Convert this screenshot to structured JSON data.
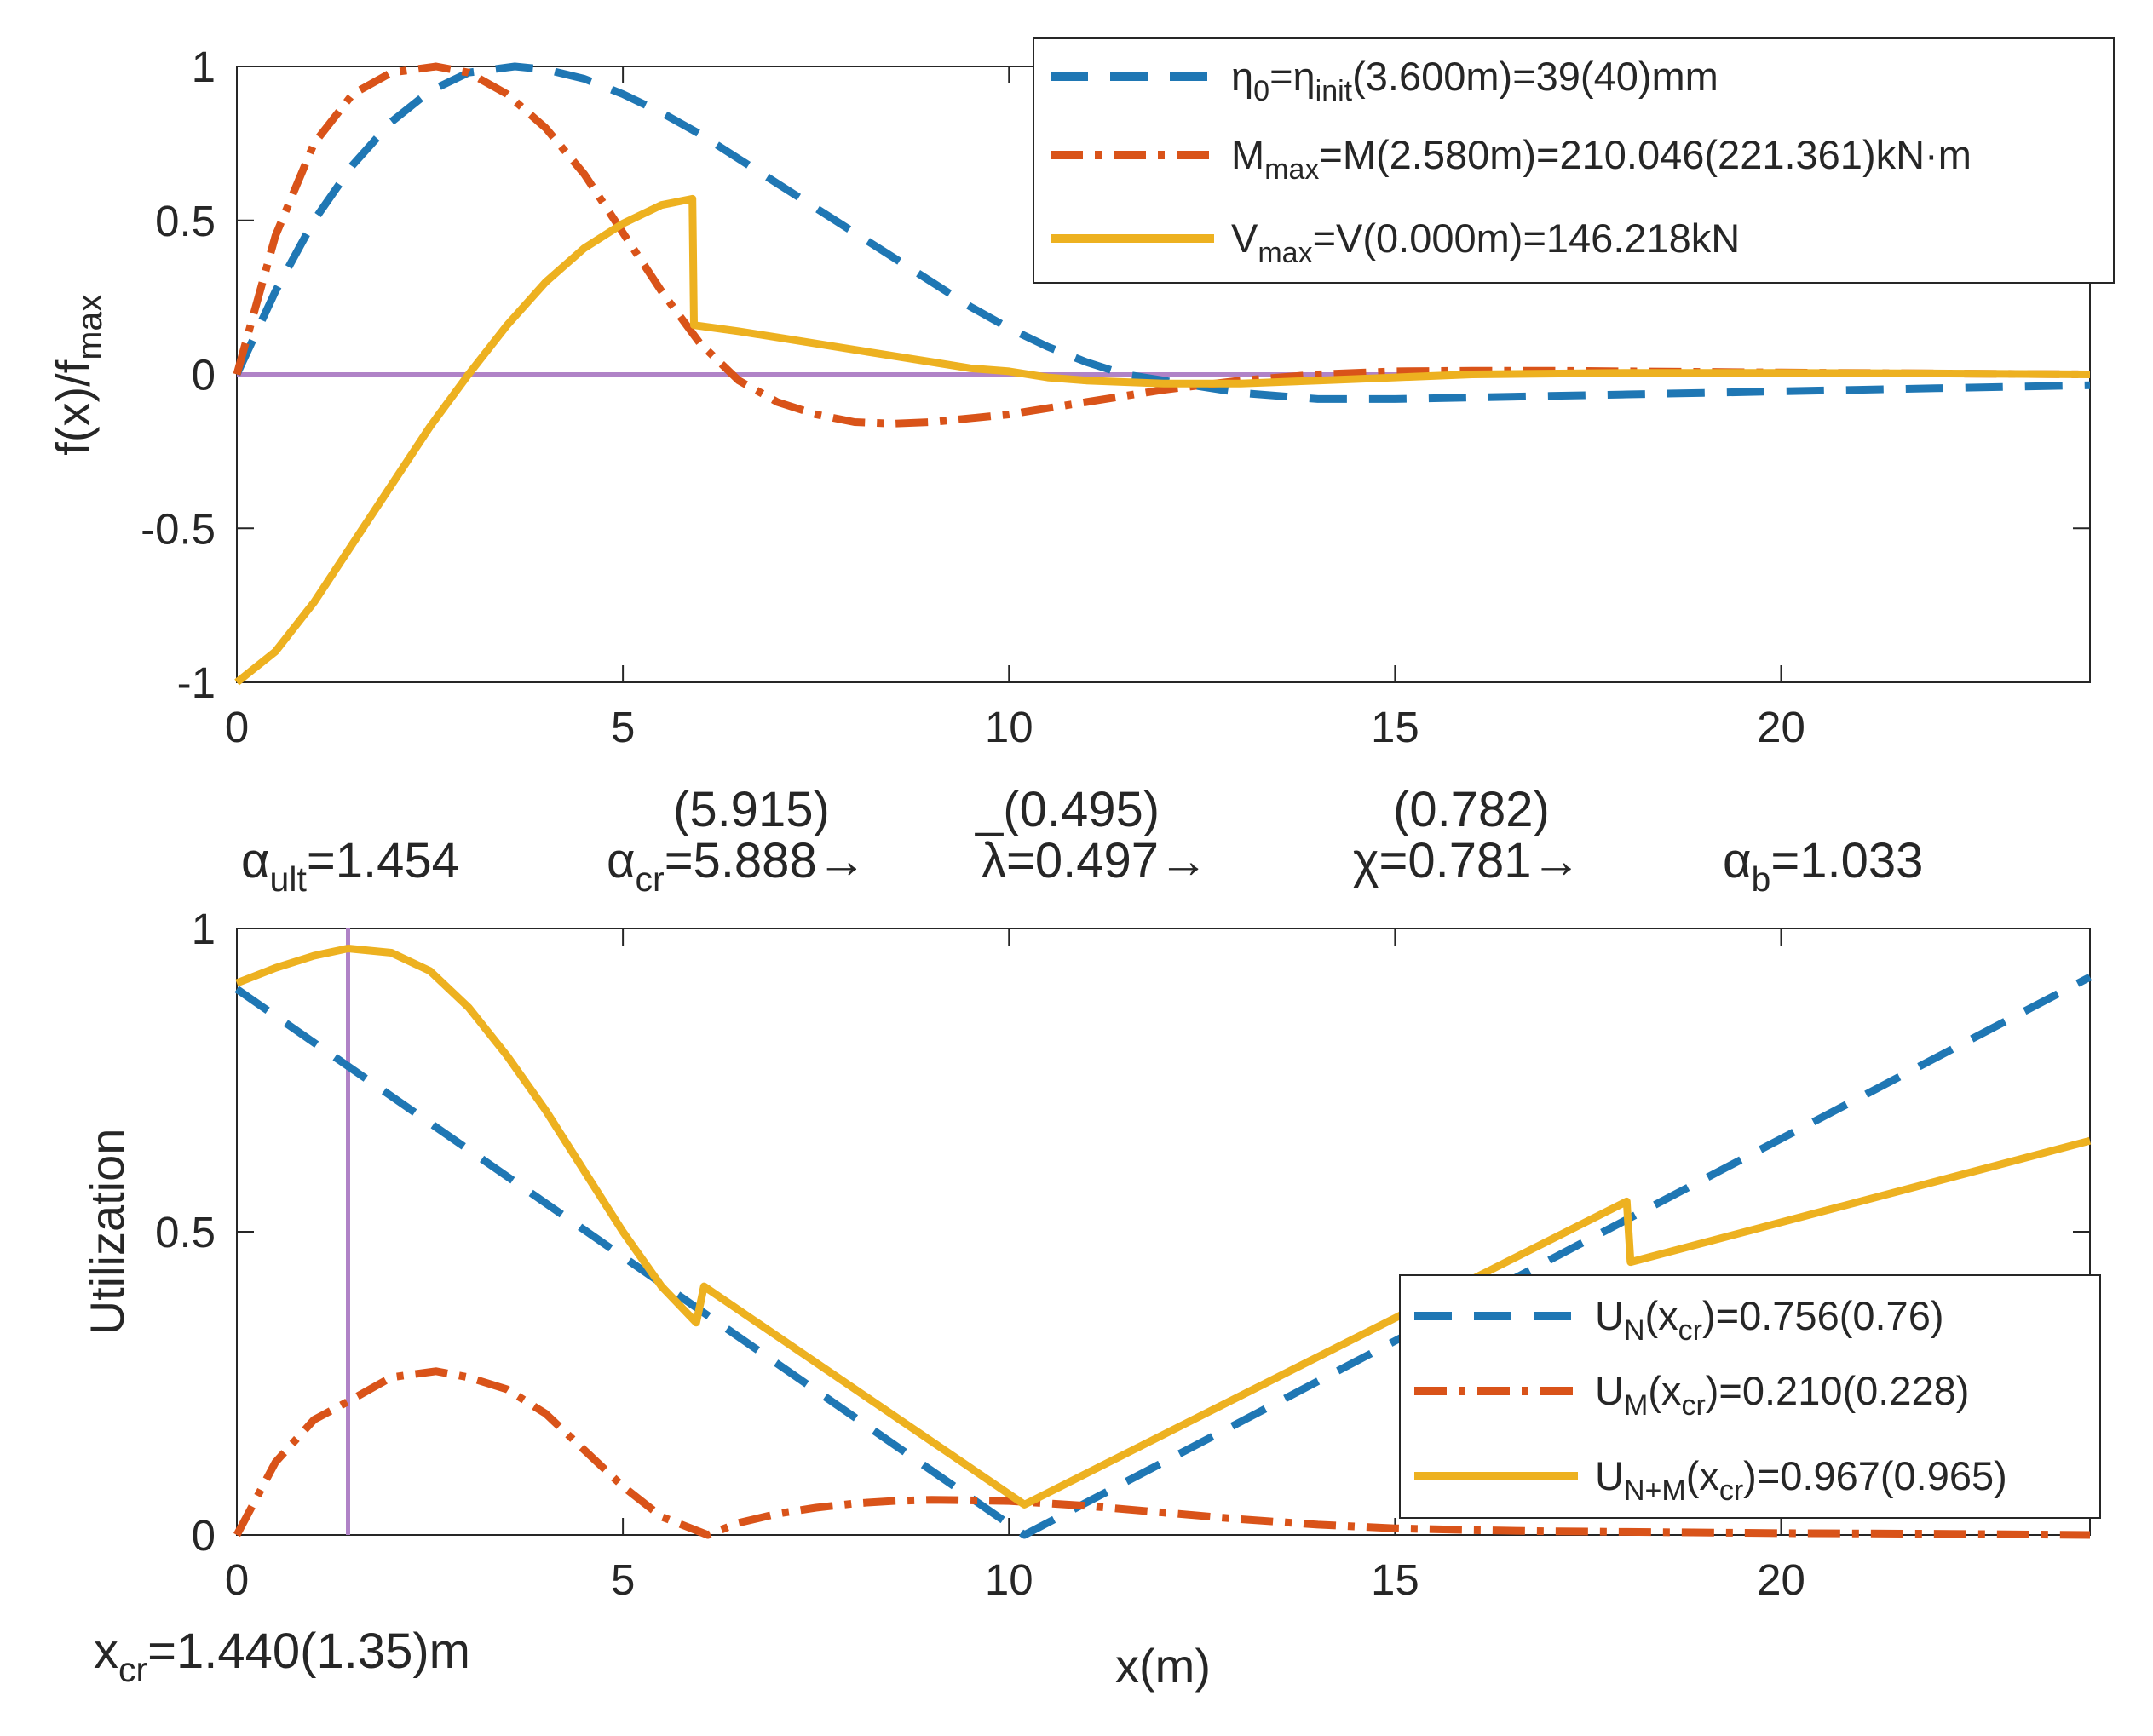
{
  "chart_data": [
    {
      "type": "line",
      "xlabel": "",
      "ylabel": "f(x)/f",
      "ylabel_sub": "max",
      "xlim": [
        0,
        24
      ],
      "ylim": [
        -1,
        1
      ],
      "xticks": [
        0,
        5,
        10,
        15,
        20
      ],
      "yticks": [
        -1,
        -0.5,
        0,
        0.5,
        1
      ],
      "xtick_labels": [
        "0",
        "5",
        "10",
        "15",
        "20"
      ],
      "ytick_labels": [
        "-1",
        "-0.5",
        "0",
        "0.5",
        "1"
      ],
      "legend_position": "top-right",
      "reference_line": {
        "y": 0,
        "color": "#b083c7"
      },
      "series": [
        {
          "name": "eta",
          "style": "dashed",
          "color": "#1f77b4",
          "legend": {
            "p1": "η",
            "s1": "0",
            "p2": "=η",
            "s2": "init",
            "p3": "(3.600m)=39(40)mm"
          },
          "x": [
            0,
            0.5,
            1,
            1.5,
            2,
            2.5,
            3,
            3.6,
            4,
            4.5,
            5,
            5.5,
            6,
            6.5,
            7,
            7.5,
            8,
            8.5,
            9,
            9.5,
            10,
            10.5,
            11,
            11.5,
            12,
            12.5,
            13,
            13.5,
            14,
            15,
            16,
            17,
            18,
            19,
            20,
            21,
            22,
            23,
            24
          ],
          "y": [
            0,
            0.27,
            0.5,
            0.68,
            0.82,
            0.92,
            0.98,
            1.0,
            0.99,
            0.96,
            0.91,
            0.85,
            0.78,
            0.7,
            0.62,
            0.54,
            0.46,
            0.38,
            0.3,
            0.22,
            0.15,
            0.09,
            0.04,
            0.0,
            -0.02,
            -0.04,
            -0.06,
            -0.07,
            -0.08,
            -0.08,
            -0.075,
            -0.07,
            -0.065,
            -0.06,
            -0.055,
            -0.05,
            -0.045,
            -0.04,
            -0.035
          ]
        },
        {
          "name": "M",
          "style": "dashdot",
          "color": "#d95319",
          "legend": {
            "p1": "M",
            "s1": "max",
            "p2": "=M(2.580m)=210.046(221.361)kN·m",
            "s2": "",
            "p3": ""
          },
          "x": [
            0,
            0.5,
            1,
            1.5,
            2,
            2.58,
            3,
            3.5,
            4,
            4.5,
            5,
            5.5,
            6,
            6.5,
            7,
            7.5,
            8,
            8.5,
            9,
            10,
            11,
            12,
            13,
            14,
            15,
            16,
            17,
            18,
            20,
            22,
            24
          ],
          "y": [
            0,
            0.45,
            0.75,
            0.91,
            0.98,
            1.0,
            0.98,
            0.91,
            0.8,
            0.65,
            0.46,
            0.27,
            0.1,
            -0.02,
            -0.09,
            -0.13,
            -0.155,
            -0.16,
            -0.155,
            -0.13,
            -0.09,
            -0.05,
            -0.02,
            0.0,
            0.01,
            0.012,
            0.012,
            0.01,
            0.006,
            0.003,
            0.0
          ]
        },
        {
          "name": "V",
          "style": "solid",
          "color": "#edb120",
          "legend": {
            "p1": "V",
            "s1": "max",
            "p2": "=V(0.000m)=146.218kN",
            "s2": "",
            "p3": ""
          },
          "x": [
            0,
            0.5,
            1,
            1.5,
            2,
            2.5,
            3,
            3.5,
            4,
            4.5,
            5,
            5.5,
            5.9,
            5.92,
            6.5,
            7,
            7.5,
            8,
            8.5,
            9,
            9.5,
            10,
            10.5,
            11,
            12,
            13,
            14,
            15,
            16,
            18,
            20,
            22,
            24
          ],
          "y": [
            -1,
            -0.9,
            -0.74,
            -0.55,
            -0.36,
            -0.17,
            0.0,
            0.16,
            0.3,
            0.41,
            0.49,
            0.55,
            0.57,
            0.16,
            0.14,
            0.12,
            0.1,
            0.08,
            0.06,
            0.04,
            0.02,
            0.01,
            -0.01,
            -0.02,
            -0.03,
            -0.03,
            -0.02,
            -0.01,
            0.0,
            0.005,
            0.005,
            0.003,
            0.0
          ]
        }
      ]
    },
    {
      "type": "line",
      "xlabel": "x(m)",
      "ylabel": "Utilization",
      "xlim": [
        0,
        24
      ],
      "ylim": [
        0,
        1
      ],
      "xticks": [
        0,
        5,
        10,
        15,
        20
      ],
      "yticks": [
        0,
        0.5,
        1
      ],
      "xtick_labels": [
        "0",
        "5",
        "10",
        "15",
        "20"
      ],
      "ytick_labels": [
        "0",
        "0.5",
        "1"
      ],
      "legend_position": "bottom-right",
      "reference_line": {
        "x": 1.44,
        "color": "#b083c7"
      },
      "series": [
        {
          "name": "UN",
          "style": "dashed",
          "color": "#1f77b4",
          "legend": {
            "p1": "U",
            "s1": "N",
            "p2": "(x",
            "s2": "cr",
            "p3": ")=0.756(0.76)"
          },
          "x": [
            0,
            10.2,
            24
          ],
          "y": [
            0.9,
            0.0,
            0.92
          ]
        },
        {
          "name": "UM",
          "style": "dashdot",
          "color": "#d95319",
          "legend": {
            "p1": "U",
            "s1": "M",
            "p2": "(x",
            "s2": "cr",
            "p3": ")=0.210(0.228)"
          },
          "x": [
            0,
            0.5,
            1,
            1.44,
            2,
            2.58,
            3,
            3.5,
            4,
            4.5,
            5,
            5.5,
            6.1,
            6.5,
            7,
            7.5,
            8,
            8.5,
            9,
            10,
            11,
            12,
            13,
            14,
            15,
            16,
            17,
            18,
            20,
            22,
            24
          ],
          "y": [
            0,
            0.12,
            0.19,
            0.22,
            0.26,
            0.27,
            0.26,
            0.24,
            0.2,
            0.14,
            0.08,
            0.03,
            0.0,
            0.02,
            0.035,
            0.045,
            0.052,
            0.056,
            0.058,
            0.056,
            0.048,
            0.037,
            0.026,
            0.017,
            0.011,
            0.008,
            0.006,
            0.005,
            0.003,
            0.002,
            0.0
          ]
        },
        {
          "name": "UNM",
          "style": "solid",
          "color": "#edb120",
          "legend": {
            "p1": "U",
            "s1": "N+M",
            "p2": "(x",
            "s2": "cr",
            "p3": ")=0.967(0.965)"
          },
          "x": [
            0,
            0.5,
            1,
            1.44,
            2,
            2.5,
            3,
            3.5,
            4,
            4.5,
            5,
            5.5,
            5.95,
            6.05,
            10.2,
            18,
            18.05,
            24
          ],
          "y": [
            0.91,
            0.935,
            0.955,
            0.967,
            0.96,
            0.93,
            0.87,
            0.79,
            0.7,
            0.6,
            0.5,
            0.41,
            0.35,
            0.41,
            0.05,
            0.55,
            0.45,
            0.65
          ]
        }
      ]
    }
  ],
  "annotations": {
    "alpha_ult": {
      "sym": "α",
      "sub": "ult",
      "val": "=1.454"
    },
    "alpha_cr": {
      "sym": "α",
      "sub": "cr",
      "val": "=5.888→",
      "top": "(5.915)"
    },
    "lambda": {
      "sym": "λ",
      "val": "=0.497→",
      "top": "(0.495)",
      "bar": "_"
    },
    "chi": {
      "sym": "χ",
      "val": "=0.781→",
      "top": "(0.782)"
    },
    "alpha_b": {
      "sym": "α",
      "sub": "b",
      "val": "=1.033"
    },
    "x_cr": {
      "sym": "x",
      "sub": "cr",
      "val": "=1.440(1.35)m"
    }
  }
}
